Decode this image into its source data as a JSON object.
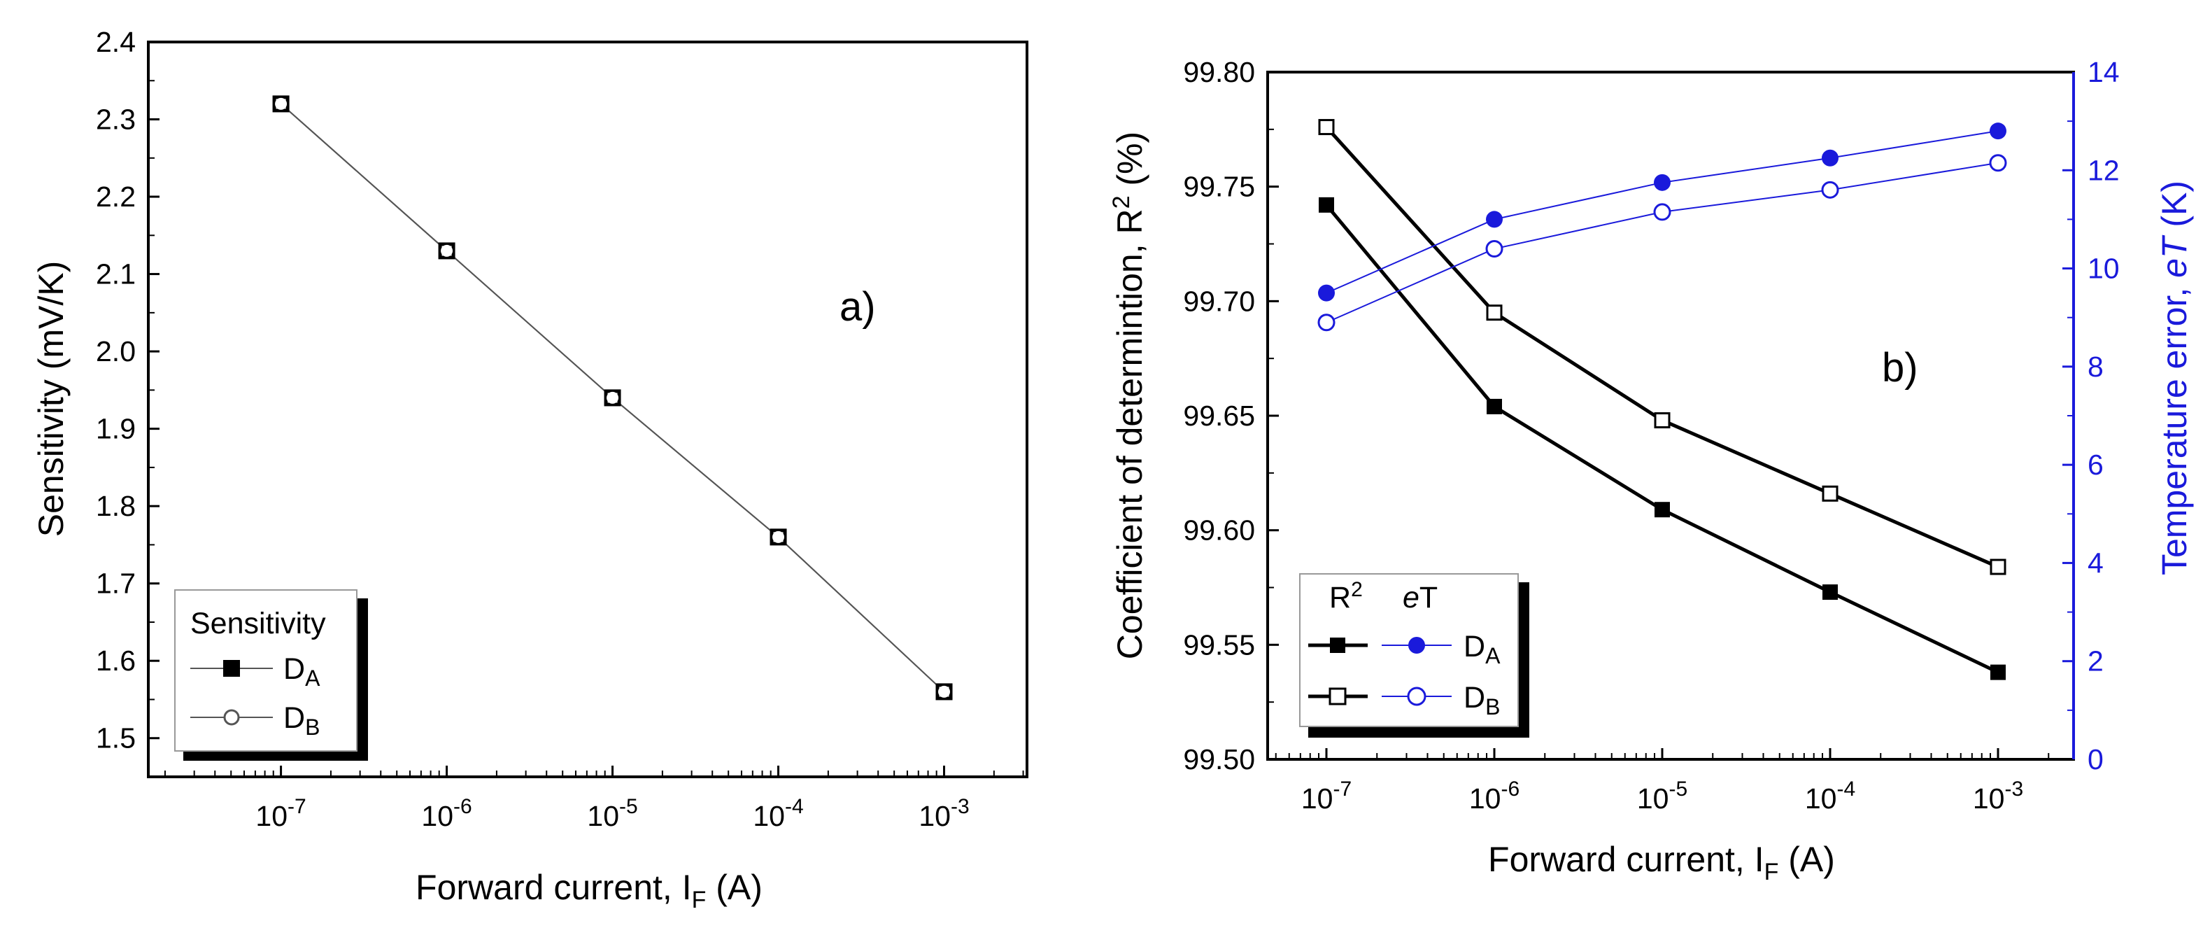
{
  "colors": {
    "black": "#000000",
    "blue": "#1a1adb",
    "frame": "#000000"
  },
  "chart_data": [
    {
      "id": "a",
      "type": "line",
      "panel_label": "a)",
      "xscale": "log",
      "xlim": [
        -7.8,
        -2.5
      ],
      "ylim": [
        1.45,
        2.4
      ],
      "x_ticks": [
        {
          "exp": -7,
          "base": "10",
          "power": "-7"
        },
        {
          "exp": -6,
          "base": "10",
          "power": "-6"
        },
        {
          "exp": -5,
          "base": "10",
          "power": "-5"
        },
        {
          "exp": -4,
          "base": "10",
          "power": "-4"
        },
        {
          "exp": -3,
          "base": "10",
          "power": "-3"
        }
      ],
      "y_ticks": [
        {
          "v": 1.5,
          "label": "1.5"
        },
        {
          "v": 1.6,
          "label": "1.6"
        },
        {
          "v": 1.7,
          "label": "1.7"
        },
        {
          "v": 1.8,
          "label": "1.8"
        },
        {
          "v": 1.9,
          "label": "1.9"
        },
        {
          "v": 2.0,
          "label": "2.0"
        },
        {
          "v": 2.1,
          "label": "2.1"
        },
        {
          "v": 2.2,
          "label": "2.2"
        },
        {
          "v": 2.3,
          "label": "2.3"
        },
        {
          "v": 2.4,
          "label": "2.4"
        }
      ],
      "xlabel": {
        "main": "Forward current, I",
        "sub": "F",
        "unit": " (A)"
      },
      "ylabel": "Sensitivity (mV/K)",
      "legend": {
        "title": "Sensitivity",
        "entries": [
          {
            "label": "D",
            "sub": "A",
            "marker": "square-filled"
          },
          {
            "label": "D",
            "sub": "B",
            "marker": "circle-open"
          }
        ]
      },
      "x": [
        -7,
        -6,
        -5,
        -4,
        -3
      ],
      "series": [
        {
          "name": "DA",
          "marker": "square-filled",
          "values": [
            2.32,
            2.13,
            1.94,
            1.76,
            1.56
          ]
        },
        {
          "name": "DB",
          "marker": "circle-open",
          "values": [
            2.32,
            2.13,
            1.94,
            1.76,
            1.56
          ]
        }
      ]
    },
    {
      "id": "b",
      "type": "line",
      "panel_label": "b)",
      "xscale": "log",
      "xlim": [
        -7.35,
        -2.55
      ],
      "ylim": [
        99.5,
        99.8
      ],
      "y2lim": [
        0,
        14
      ],
      "x_ticks": [
        {
          "exp": -7,
          "base": "10",
          "power": "-7"
        },
        {
          "exp": -6,
          "base": "10",
          "power": "-6"
        },
        {
          "exp": -5,
          "base": "10",
          "power": "-5"
        },
        {
          "exp": -4,
          "base": "10",
          "power": "-4"
        },
        {
          "exp": -3,
          "base": "10",
          "power": "-3"
        }
      ],
      "y_ticks": [
        {
          "v": 99.5,
          "label": "99.50"
        },
        {
          "v": 99.55,
          "label": "99.55"
        },
        {
          "v": 99.6,
          "label": "99.60"
        },
        {
          "v": 99.65,
          "label": "99.65"
        },
        {
          "v": 99.7,
          "label": "99.70"
        },
        {
          "v": 99.75,
          "label": "99.75"
        },
        {
          "v": 99.8,
          "label": "99.80"
        }
      ],
      "y2_ticks": [
        {
          "v": 0,
          "label": "0"
        },
        {
          "v": 2,
          "label": "2"
        },
        {
          "v": 4,
          "label": "4"
        },
        {
          "v": 6,
          "label": "6"
        },
        {
          "v": 8,
          "label": "8"
        },
        {
          "v": 10,
          "label": "10"
        },
        {
          "v": 12,
          "label": "12"
        },
        {
          "v": 14,
          "label": "14"
        }
      ],
      "xlabel": {
        "main": "Forward current, I",
        "sub": "F",
        "unit": " (A)"
      },
      "ylabel": {
        "main": "Coefficient of determintion, R",
        "sup": "2",
        "unit": " (%)"
      },
      "y2label": {
        "main": "Temperature error, ",
        "italic": "eT",
        "unit": " (K)"
      },
      "legend": {
        "col1": {
          "main": "R",
          "sup": "2"
        },
        "col2": {
          "italic": "e",
          "rest": "T"
        },
        "rows": [
          {
            "label": "D",
            "sub": "A"
          },
          {
            "label": "D",
            "sub": "B"
          }
        ]
      },
      "x": [
        -7,
        -6,
        -5,
        -4,
        -3
      ],
      "series": [
        {
          "name": "R2 DA",
          "axis": "left",
          "color": "black",
          "marker": "square-filled",
          "values": [
            99.742,
            99.654,
            99.609,
            99.573,
            99.538
          ]
        },
        {
          "name": "R2 DB",
          "axis": "left",
          "color": "black",
          "marker": "square-open",
          "values": [
            99.776,
            99.695,
            99.648,
            99.616,
            99.584
          ]
        },
        {
          "name": "eT DA",
          "axis": "right",
          "color": "blue",
          "marker": "circle-filled",
          "values": [
            9.5,
            11.0,
            11.75,
            12.25,
            12.8
          ]
        },
        {
          "name": "eT DB",
          "axis": "right",
          "color": "blue",
          "marker": "circle-open",
          "values": [
            8.9,
            10.4,
            11.15,
            11.6,
            12.15
          ]
        }
      ]
    }
  ]
}
